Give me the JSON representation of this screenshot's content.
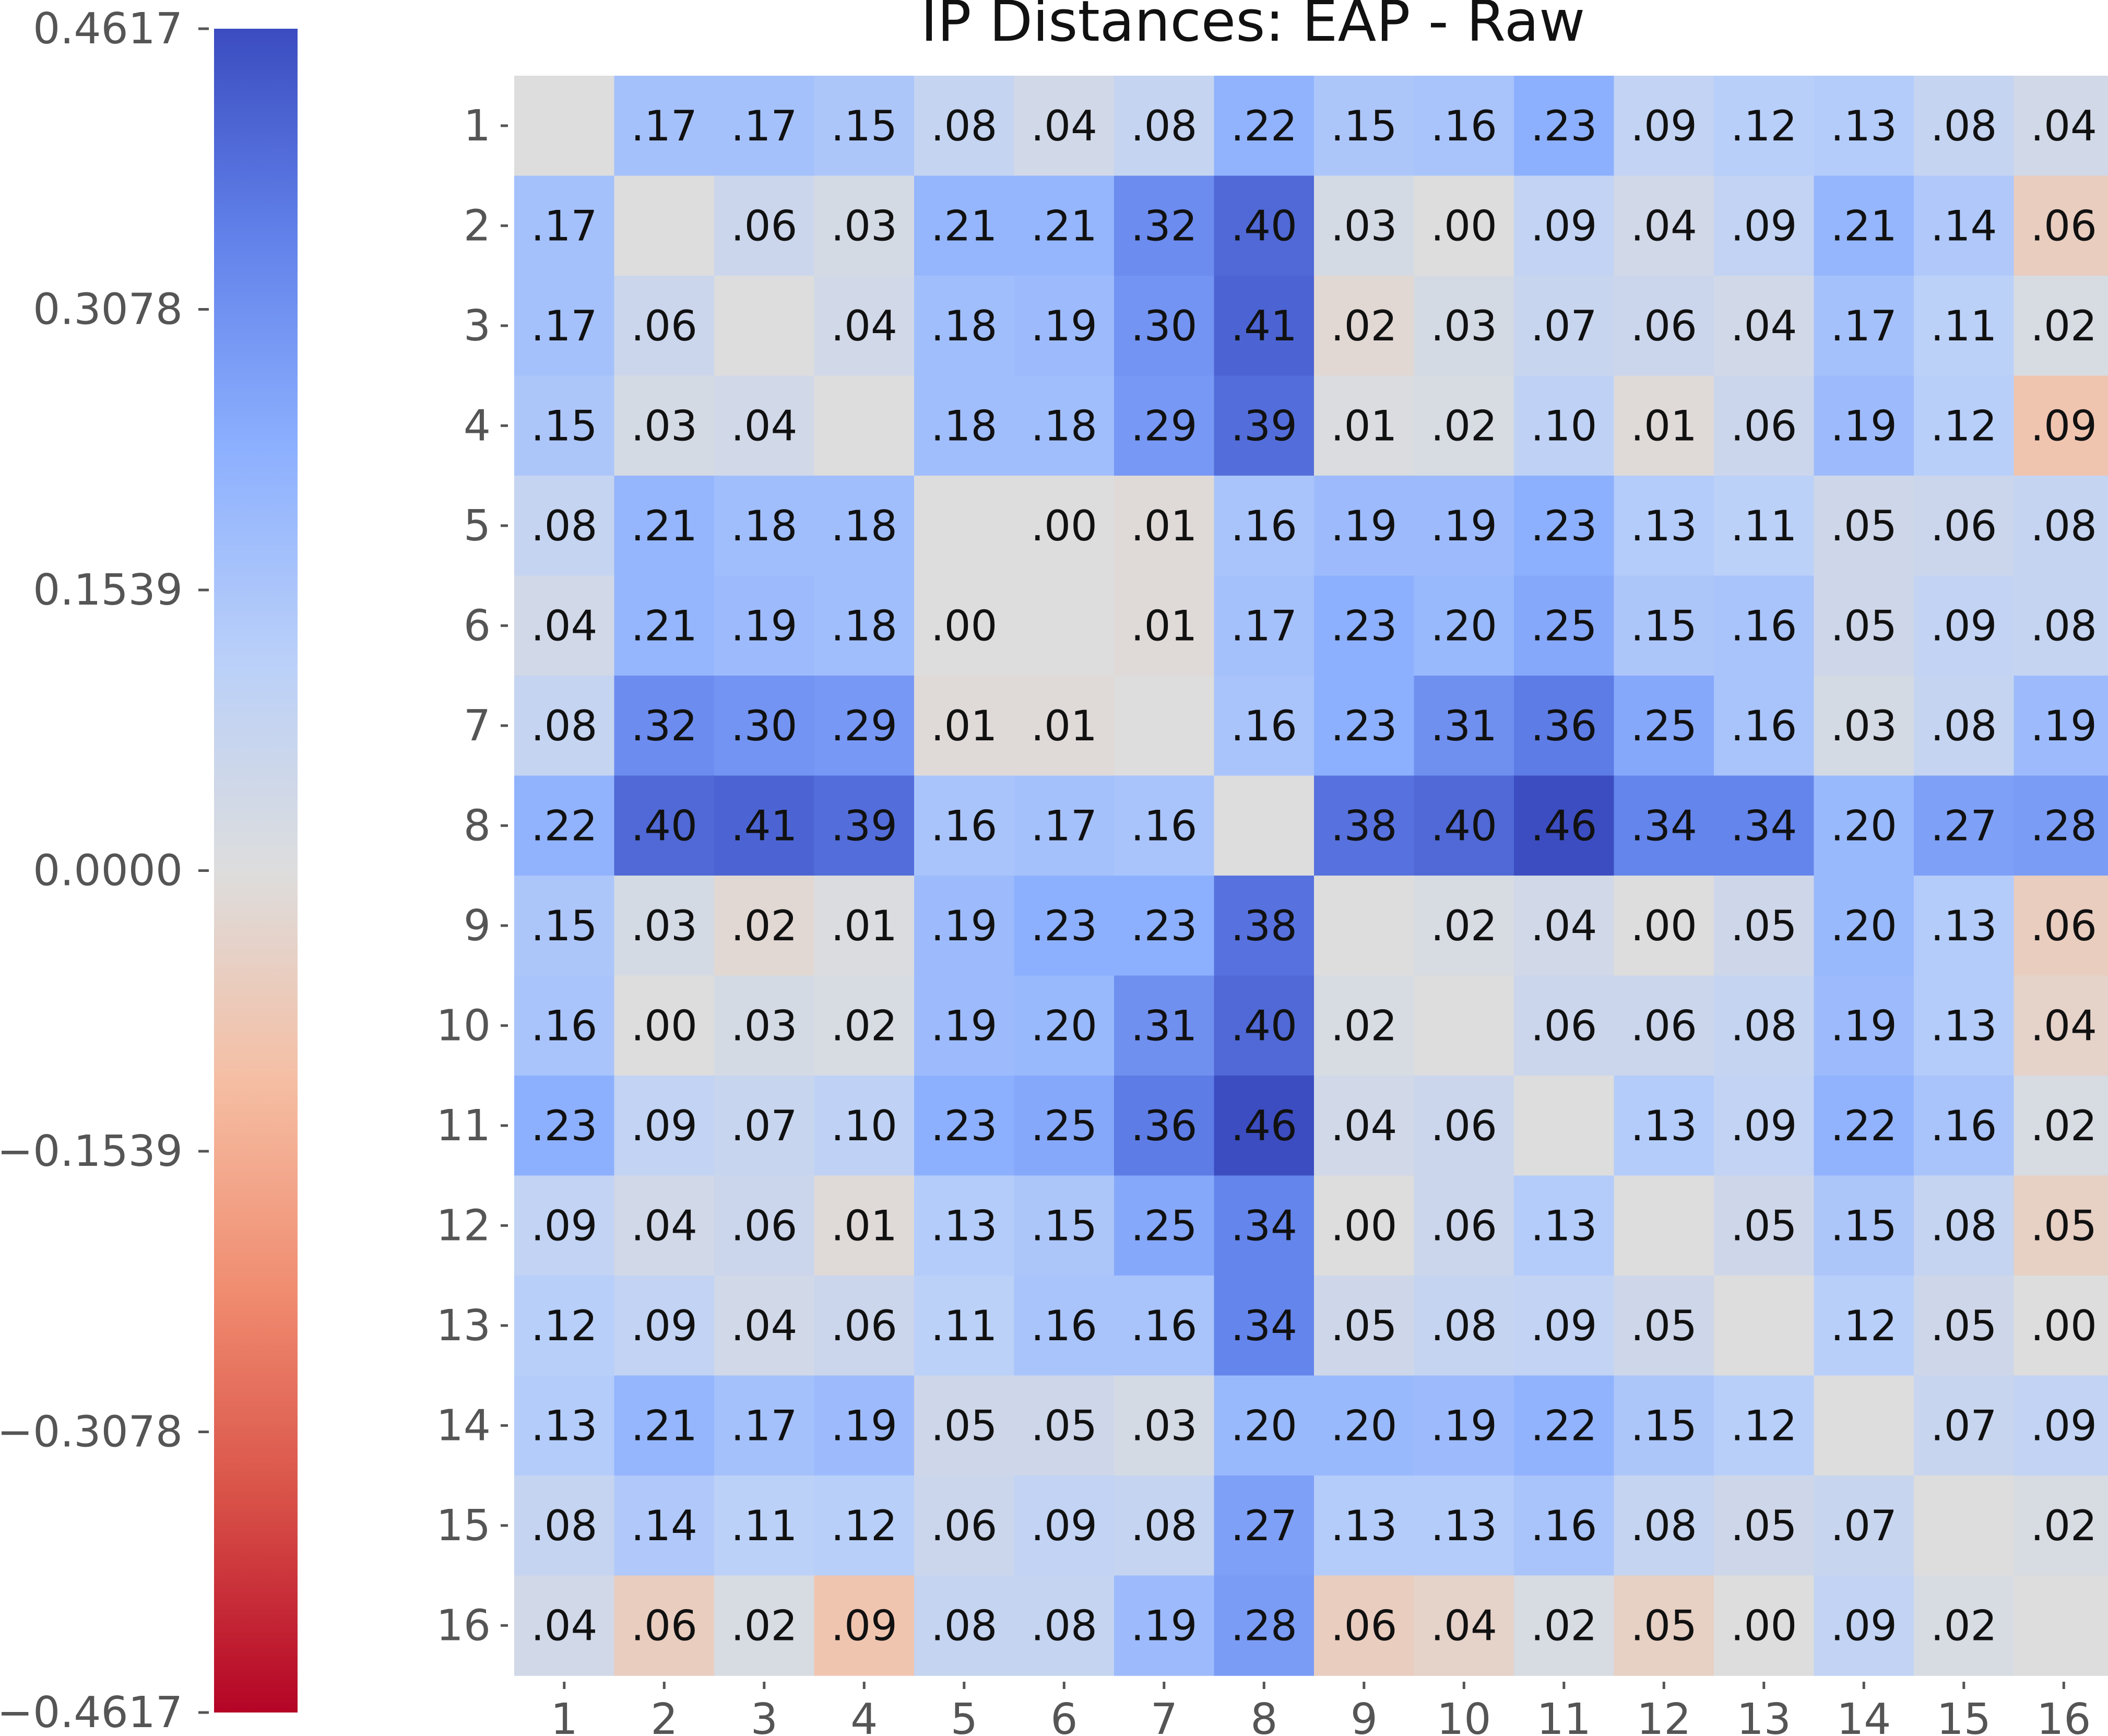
{
  "chart_data": {
    "type": "heatmap",
    "title": "IP Distances: EAP - Raw",
    "row_labels": [
      "1",
      "2",
      "3",
      "4",
      "5",
      "6",
      "7",
      "8",
      "9",
      "10",
      "11",
      "12",
      "13",
      "14",
      "15",
      "16"
    ],
    "col_labels": [
      "1",
      "2",
      "3",
      "4",
      "5",
      "6",
      "7",
      "8",
      "9",
      "10",
      "11",
      "12",
      "13",
      "14",
      "15",
      "16"
    ],
    "values": [
      [
        null,
        0.17,
        0.17,
        0.15,
        0.08,
        0.04,
        0.08,
        0.22,
        0.15,
        0.16,
        0.23,
        0.09,
        0.12,
        0.13,
        0.08,
        0.04
      ],
      [
        0.17,
        null,
        0.06,
        0.03,
        0.21,
        0.21,
        0.32,
        0.4,
        0.03,
        0.0,
        0.09,
        0.04,
        0.09,
        0.21,
        0.14,
        -0.06
      ],
      [
        0.17,
        0.06,
        null,
        0.04,
        0.18,
        0.19,
        0.3,
        0.41,
        -0.02,
        0.03,
        0.07,
        0.06,
        0.04,
        0.17,
        0.11,
        0.02
      ],
      [
        0.15,
        0.03,
        0.04,
        null,
        0.18,
        0.18,
        0.29,
        0.39,
        0.01,
        0.02,
        0.1,
        -0.01,
        0.06,
        0.19,
        0.12,
        -0.09
      ],
      [
        0.08,
        0.21,
        0.18,
        0.18,
        null,
        0.0,
        -0.01,
        0.16,
        0.19,
        0.19,
        0.23,
        0.13,
        0.11,
        0.05,
        0.06,
        0.08
      ],
      [
        0.04,
        0.21,
        0.19,
        0.18,
        0.0,
        null,
        -0.01,
        0.17,
        0.23,
        0.2,
        0.25,
        0.15,
        0.16,
        0.05,
        0.09,
        0.08
      ],
      [
        0.08,
        0.32,
        0.3,
        0.29,
        -0.01,
        -0.01,
        null,
        0.16,
        0.23,
        0.31,
        0.36,
        0.25,
        0.16,
        0.03,
        0.08,
        0.19
      ],
      [
        0.22,
        0.4,
        0.41,
        0.39,
        0.16,
        0.17,
        0.16,
        null,
        0.38,
        0.4,
        0.46,
        0.34,
        0.34,
        0.2,
        0.27,
        0.28
      ],
      [
        0.15,
        0.03,
        -0.02,
        0.01,
        0.19,
        0.23,
        0.23,
        0.38,
        null,
        0.02,
        0.04,
        0.0,
        0.05,
        0.2,
        0.13,
        -0.06
      ],
      [
        0.16,
        0.0,
        0.03,
        0.02,
        0.19,
        0.2,
        0.31,
        0.4,
        0.02,
        null,
        0.06,
        0.06,
        0.08,
        0.19,
        0.13,
        -0.04
      ],
      [
        0.23,
        0.09,
        0.07,
        0.1,
        0.23,
        0.25,
        0.36,
        0.46,
        0.04,
        0.06,
        null,
        0.13,
        0.09,
        0.22,
        0.16,
        0.02
      ],
      [
        0.09,
        0.04,
        0.06,
        -0.01,
        0.13,
        0.15,
        0.25,
        0.34,
        0.0,
        0.06,
        0.13,
        null,
        0.05,
        0.15,
        0.08,
        -0.05
      ],
      [
        0.12,
        0.09,
        0.04,
        0.06,
        0.11,
        0.16,
        0.16,
        0.34,
        0.05,
        0.08,
        0.09,
        0.05,
        null,
        0.12,
        0.05,
        0.0
      ],
      [
        0.13,
        0.21,
        0.17,
        0.19,
        0.05,
        0.05,
        0.03,
        0.2,
        0.2,
        0.19,
        0.22,
        0.15,
        0.12,
        null,
        0.07,
        0.09
      ],
      [
        0.08,
        0.14,
        0.11,
        0.12,
        0.06,
        0.09,
        0.08,
        0.27,
        0.13,
        0.13,
        0.16,
        0.08,
        0.05,
        0.07,
        null,
        0.02
      ],
      [
        0.04,
        -0.06,
        0.02,
        -0.09,
        0.08,
        0.08,
        0.19,
        0.28,
        -0.06,
        -0.04,
        0.02,
        -0.05,
        0.0,
        0.09,
        0.02,
        null
      ]
    ],
    "cell_labels": [
      [
        "",
        ".17",
        ".17",
        ".15",
        ".08",
        ".04",
        ".08",
        ".22",
        ".15",
        ".16",
        ".23",
        ".09",
        ".12",
        ".13",
        ".08",
        ".04"
      ],
      [
        ".17",
        "",
        ".06",
        ".03",
        ".21",
        ".21",
        ".32",
        ".40",
        ".03",
        ".00",
        ".09",
        ".04",
        ".09",
        ".21",
        ".14",
        ".06"
      ],
      [
        ".17",
        ".06",
        "",
        ".04",
        ".18",
        ".19",
        ".30",
        ".41",
        ".02",
        ".03",
        ".07",
        ".06",
        ".04",
        ".17",
        ".11",
        ".02"
      ],
      [
        ".15",
        ".03",
        ".04",
        "",
        ".18",
        ".18",
        ".29",
        ".39",
        ".01",
        ".02",
        ".10",
        ".01",
        ".06",
        ".19",
        ".12",
        ".09"
      ],
      [
        ".08",
        ".21",
        ".18",
        ".18",
        "",
        ".00",
        ".01",
        ".16",
        ".19",
        ".19",
        ".23",
        ".13",
        ".11",
        ".05",
        ".06",
        ".08"
      ],
      [
        ".04",
        ".21",
        ".19",
        ".18",
        ".00",
        "",
        ".01",
        ".17",
        ".23",
        ".20",
        ".25",
        ".15",
        ".16",
        ".05",
        ".09",
        ".08"
      ],
      [
        ".08",
        ".32",
        ".30",
        ".29",
        ".01",
        ".01",
        "",
        ".16",
        ".23",
        ".31",
        ".36",
        ".25",
        ".16",
        ".03",
        ".08",
        ".19"
      ],
      [
        ".22",
        ".40",
        ".41",
        ".39",
        ".16",
        ".17",
        ".16",
        "",
        ".38",
        ".40",
        ".46",
        ".34",
        ".34",
        ".20",
        ".27",
        ".28"
      ],
      [
        ".15",
        ".03",
        ".02",
        ".01",
        ".19",
        ".23",
        ".23",
        ".38",
        "",
        ".02",
        ".04",
        ".00",
        ".05",
        ".20",
        ".13",
        ".06"
      ],
      [
        ".16",
        ".00",
        ".03",
        ".02",
        ".19",
        ".20",
        ".31",
        ".40",
        ".02",
        "",
        ".06",
        ".06",
        ".08",
        ".19",
        ".13",
        ".04"
      ],
      [
        ".23",
        ".09",
        ".07",
        ".10",
        ".23",
        ".25",
        ".36",
        ".46",
        ".04",
        ".06",
        "",
        ".13",
        ".09",
        ".22",
        ".16",
        ".02"
      ],
      [
        ".09",
        ".04",
        ".06",
        ".01",
        ".13",
        ".15",
        ".25",
        ".34",
        ".00",
        ".06",
        ".13",
        "",
        ".05",
        ".15",
        ".08",
        ".05"
      ],
      [
        ".12",
        ".09",
        ".04",
        ".06",
        ".11",
        ".16",
        ".16",
        ".34",
        ".05",
        ".08",
        ".09",
        ".05",
        "",
        ".12",
        ".05",
        ".00"
      ],
      [
        ".13",
        ".21",
        ".17",
        ".19",
        ".05",
        ".05",
        ".03",
        ".20",
        ".20",
        ".19",
        ".22",
        ".15",
        ".12",
        "",
        ".07",
        ".09"
      ],
      [
        ".08",
        ".14",
        ".11",
        ".12",
        ".06",
        ".09",
        ".08",
        ".27",
        ".13",
        ".13",
        ".16",
        ".08",
        ".05",
        ".07",
        "",
        ".02"
      ],
      [
        ".04",
        ".06",
        ".02",
        ".09",
        ".08",
        ".08",
        ".19",
        ".28",
        ".06",
        ".04",
        ".02",
        ".05",
        ".00",
        ".09",
        ".02",
        ""
      ]
    ],
    "colorbar": {
      "colormap": "coolwarm (reversed: blue = high, red = low)",
      "vmin": -0.4617,
      "vmax": 0.4617,
      "ticks": [
        0.4617,
        0.3078,
        0.1539,
        0.0,
        -0.1539,
        -0.3078,
        -0.4617
      ],
      "tick_labels": [
        "0.4617",
        "0.3078",
        "0.1539",
        "0.0000",
        "−0.1539",
        "−0.3078",
        "−0.4617"
      ],
      "placement": "left"
    },
    "colors": {
      "high": "#3b4cc0",
      "mid": "#dddddd",
      "low": "#b40426"
    }
  }
}
